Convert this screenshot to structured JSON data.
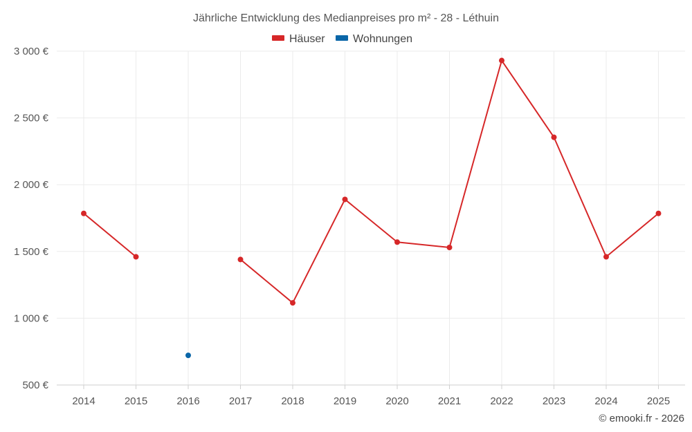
{
  "chart_data": {
    "type": "line",
    "title": "Jährliche Entwicklung des Medianpreises pro m² - 28 - Léthuin",
    "categories": [
      "2014",
      "2015",
      "2016",
      "2017",
      "2018",
      "2019",
      "2020",
      "2021",
      "2022",
      "2023",
      "2024",
      "2025"
    ],
    "series": [
      {
        "name": "Häuser",
        "color": "#d62728",
        "values": [
          1785,
          1460,
          null,
          1440,
          1115,
          1890,
          1570,
          1530,
          2930,
          2355,
          1460,
          1785
        ]
      },
      {
        "name": "Wohnungen",
        "color": "#0a66a8",
        "values": [
          null,
          null,
          722,
          null,
          null,
          null,
          null,
          null,
          null,
          null,
          null,
          null
        ]
      }
    ],
    "y_ticks": [
      500,
      1000,
      1500,
      2000,
      2500,
      3000
    ],
    "y_tick_labels": [
      "500 €",
      "1 000 €",
      "1 500 €",
      "2 000 €",
      "2 500 €",
      "3 000 €"
    ],
    "ylim": [
      500,
      3000
    ],
    "xlabel": "",
    "ylabel": "",
    "grid": true,
    "legend_position": "top-center"
  },
  "credit": "© emooki.fr - 2026"
}
